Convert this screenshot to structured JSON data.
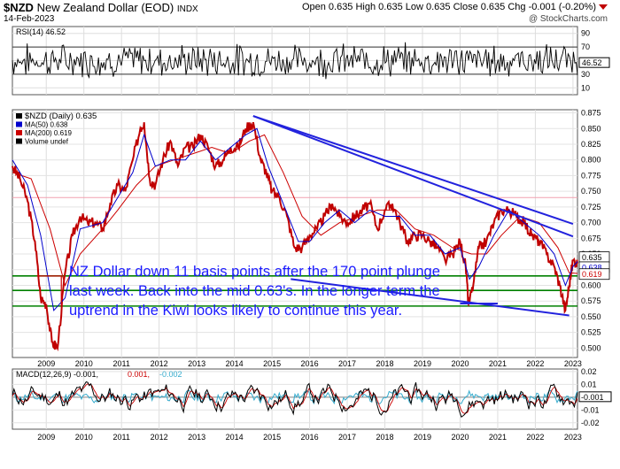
{
  "header": {
    "symbol": "$NZD",
    "name": "New Zealand Dollar (EOD)",
    "exchange": "INDX",
    "date": "14-Feb-2023",
    "ohlc": "Open 0.635  High 0.635  Low 0.635  Close 0.635  Chg -0.001 (-0.20%)",
    "source": "@ StockCharts.com"
  },
  "annotation": {
    "line1": "NZ Dollar down 11 basis points after the 170 point plunge",
    "line2": "last week. Back into the mid 0.63's. In the longer term the",
    "line3": "uptrend in the Kiwi looks likely to continue this year."
  },
  "colors": {
    "price": "#c00000",
    "ma50": "#0000cc",
    "ma200": "#cc0000",
    "rsi": "#000000",
    "macd": "#000000",
    "signal": "#cc0000",
    "histogram": "#33aacc",
    "trendline": "#2222dd",
    "support": "#008000",
    "annotation": "#1a1aff"
  },
  "chart_data": [
    {
      "type": "line",
      "panel": "rsi",
      "title": "RSI(14) 46.52",
      "current_value": 46.52,
      "ylim": [
        0,
        100
      ],
      "ticks": [
        10,
        30,
        50,
        70,
        90
      ],
      "bands": [
        30,
        70
      ]
    },
    {
      "type": "line",
      "panel": "price",
      "title": "$NZD (Daily) 0.635",
      "legend": [
        "$NZD (Daily) 0.635",
        "MA(50) 0.638",
        "MA(200) 0.619",
        "Volume undef"
      ],
      "ylim": [
        0.485,
        0.88
      ],
      "y_ticks": [
        0.5,
        0.525,
        0.55,
        0.575,
        0.6,
        0.625,
        0.65,
        0.675,
        0.7,
        0.725,
        0.75,
        0.775,
        0.8,
        0.825,
        0.85,
        0.875
      ],
      "x_ticks": [
        "2009",
        "2010",
        "2011",
        "2012",
        "2013",
        "2014",
        "2015",
        "2016",
        "2017",
        "2018",
        "2019",
        "2020",
        "2021",
        "2022",
        "2023"
      ],
      "x_start": 2008.1,
      "x_end": 2023.12,
      "price_series": {
        "name": "$NZD",
        "x": [
          2008.1,
          2008.3,
          2008.5,
          2008.7,
          2008.85,
          2009.0,
          2009.15,
          2009.3,
          2009.5,
          2009.7,
          2009.9,
          2010.1,
          2010.3,
          2010.5,
          2010.7,
          2010.9,
          2011.1,
          2011.3,
          2011.5,
          2011.6,
          2011.75,
          2011.9,
          2012.1,
          2012.3,
          2012.5,
          2012.7,
          2012.9,
          2013.1,
          2013.3,
          2013.5,
          2013.7,
          2013.9,
          2014.1,
          2014.3,
          2014.5,
          2014.7,
          2014.85,
          2015.0,
          2015.2,
          2015.4,
          2015.6,
          2015.8,
          2016.0,
          2016.2,
          2016.4,
          2016.6,
          2016.8,
          2017.0,
          2017.2,
          2017.4,
          2017.6,
          2017.8,
          2018.0,
          2018.2,
          2018.4,
          2018.6,
          2018.8,
          2019.0,
          2019.2,
          2019.4,
          2019.6,
          2019.8,
          2020.0,
          2020.15,
          2020.22,
          2020.35,
          2020.5,
          2020.7,
          2020.9,
          2021.1,
          2021.3,
          2021.5,
          2021.7,
          2021.9,
          2022.1,
          2022.3,
          2022.5,
          2022.65,
          2022.8,
          2022.9,
          2023.0,
          2023.12
        ],
        "values": [
          0.79,
          0.77,
          0.735,
          0.67,
          0.58,
          0.57,
          0.51,
          0.5,
          0.62,
          0.68,
          0.71,
          0.7,
          0.7,
          0.69,
          0.73,
          0.76,
          0.75,
          0.8,
          0.85,
          0.86,
          0.77,
          0.76,
          0.8,
          0.83,
          0.79,
          0.82,
          0.82,
          0.84,
          0.82,
          0.79,
          0.8,
          0.82,
          0.82,
          0.85,
          0.86,
          0.8,
          0.78,
          0.75,
          0.74,
          0.71,
          0.66,
          0.66,
          0.68,
          0.69,
          0.71,
          0.73,
          0.71,
          0.7,
          0.71,
          0.72,
          0.73,
          0.69,
          0.72,
          0.73,
          0.7,
          0.67,
          0.68,
          0.68,
          0.67,
          0.66,
          0.64,
          0.65,
          0.67,
          0.63,
          0.57,
          0.6,
          0.66,
          0.67,
          0.7,
          0.72,
          0.72,
          0.71,
          0.7,
          0.68,
          0.67,
          0.65,
          0.63,
          0.6,
          0.56,
          0.6,
          0.64,
          0.635
        ]
      },
      "ma50_series": {
        "name": "MA(50)",
        "x": [
          2008.1,
          2008.5,
          2008.85,
          2009.2,
          2009.5,
          2009.9,
          2010.5,
          2010.9,
          2011.3,
          2011.6,
          2011.9,
          2012.3,
          2012.7,
          2013.1,
          2013.5,
          2013.9,
          2014.3,
          2014.6,
          2014.9,
          2015.3,
          2015.7,
          2016.0,
          2016.4,
          2016.8,
          2017.2,
          2017.6,
          2018.0,
          2018.4,
          2018.8,
          2019.2,
          2019.6,
          2020.0,
          2020.25,
          2020.5,
          2020.9,
          2021.3,
          2021.7,
          2022.1,
          2022.5,
          2022.8,
          2023.0,
          2023.12
        ],
        "values": [
          0.8,
          0.76,
          0.68,
          0.56,
          0.58,
          0.69,
          0.7,
          0.74,
          0.78,
          0.84,
          0.79,
          0.8,
          0.8,
          0.83,
          0.8,
          0.82,
          0.84,
          0.85,
          0.79,
          0.73,
          0.67,
          0.67,
          0.7,
          0.72,
          0.7,
          0.72,
          0.71,
          0.71,
          0.68,
          0.68,
          0.65,
          0.66,
          0.61,
          0.63,
          0.68,
          0.72,
          0.7,
          0.68,
          0.65,
          0.6,
          0.63,
          0.638
        ]
      },
      "ma200_series": {
        "name": "MA(200)",
        "x": [
          2008.1,
          2008.6,
          2009.1,
          2009.5,
          2009.9,
          2010.5,
          2010.9,
          2011.4,
          2011.9,
          2012.4,
          2012.9,
          2013.4,
          2013.9,
          2014.4,
          2014.8,
          2015.3,
          2015.8,
          2016.3,
          2016.8,
          2017.3,
          2017.8,
          2018.3,
          2018.8,
          2019.3,
          2019.8,
          2020.3,
          2020.7,
          2021.1,
          2021.6,
          2022.1,
          2022.6,
          2022.9,
          2023.12
        ],
        "values": [
          0.78,
          0.77,
          0.69,
          0.6,
          0.65,
          0.69,
          0.72,
          0.76,
          0.79,
          0.8,
          0.81,
          0.82,
          0.81,
          0.83,
          0.84,
          0.78,
          0.71,
          0.68,
          0.7,
          0.71,
          0.72,
          0.72,
          0.69,
          0.68,
          0.66,
          0.65,
          0.65,
          0.68,
          0.71,
          0.7,
          0.66,
          0.62,
          0.619
        ]
      },
      "trendlines": [
        {
          "x": [
            2014.5,
            2023.0
          ],
          "y": [
            0.87,
            0.698
          ]
        },
        {
          "x": [
            2014.5,
            2023.0
          ],
          "y": [
            0.87,
            0.678
          ]
        },
        {
          "x": [
            2015.5,
            2022.9
          ],
          "y": [
            0.61,
            0.552
          ]
        },
        {
          "x": [
            2020.0,
            2021.0
          ],
          "y": [
            0.571,
            0.571
          ]
        }
      ],
      "support_lines": [
        0.615,
        0.592,
        0.567
      ],
      "resistance_line": 0.74,
      "price_label": "0.635",
      "ma50_label": "0.638",
      "ma200_label": "0.619"
    },
    {
      "type": "line",
      "panel": "macd",
      "title": "MACD(12,26,9) -0.001, 0.001, -0.002",
      "legend": [
        "MACD(12,26,9) -0.001,",
        "0.001,",
        "-0.002"
      ],
      "ylim": [
        -0.025,
        0.022
      ],
      "ticks": [
        -0.02,
        -0.01,
        0.0,
        0.01,
        0.02
      ],
      "tick_labels": [
        "-0.02",
        "-0.01",
        "0.00",
        "0.01",
        "0.02"
      ],
      "current_label": "-0.001"
    }
  ]
}
